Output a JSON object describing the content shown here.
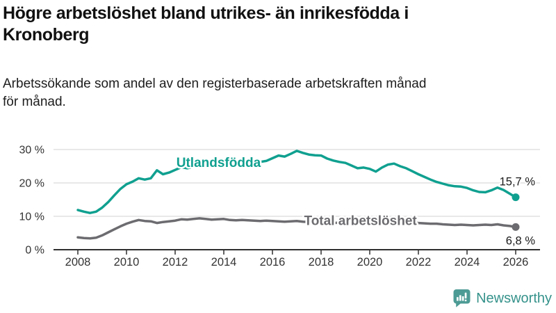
{
  "header": {
    "title": "Högre arbetslöshet bland utrikes- än inrikesfödda i\nKronoberg",
    "subtitle": "Arbetssökande som andel av den registerbaserade arbetskraften månad\nför månad."
  },
  "chart_data": {
    "type": "line",
    "title": "",
    "xlabel": "",
    "ylabel": "",
    "x_start": 2008,
    "x_step": 0.25,
    "x_ticks": [
      2008,
      2010,
      2012,
      2014,
      2016,
      2018,
      2020,
      2022,
      2024,
      2026
    ],
    "y_ticks": [
      0,
      10,
      20,
      30
    ],
    "y_tick_suffix": " %",
    "ylim": [
      0,
      32
    ],
    "xlim": [
      2007,
      2027
    ],
    "grid": true,
    "axis_color": "#2f2f2f",
    "grid_color": "#e0e0e0",
    "tick_label_color": "#333333",
    "end_label_color": "#1a1a1a",
    "series": [
      {
        "name": "Utlandsfödda",
        "slug": "utlandsfodda",
        "color": "#10A090",
        "end_label": "15,7 %",
        "last_value": 15.7,
        "inline_label_pos": {
          "year": 2012.05,
          "pct": 24.8
        },
        "end_label_offset": {
          "dx": 28,
          "dy": -17
        },
        "values": [
          11.9,
          11.4,
          11.0,
          11.4,
          12.6,
          14.3,
          16.3,
          18.2,
          19.6,
          20.4,
          21.4,
          21.0,
          21.4,
          23.8,
          22.6,
          23.1,
          23.9,
          24.7,
          24.4,
          24.8,
          25.0,
          25.3,
          25.1,
          25.0,
          25.1,
          25.4,
          25.2,
          25.6,
          25.7,
          26.0,
          26.3,
          26.6,
          27.4,
          28.2,
          27.9,
          28.7,
          29.6,
          29.0,
          28.5,
          28.3,
          28.2,
          27.3,
          26.7,
          26.3,
          26.0,
          25.2,
          24.4,
          24.6,
          24.2,
          23.4,
          24.6,
          25.5,
          25.8,
          25.0,
          24.4,
          23.5,
          22.6,
          21.8,
          21.0,
          20.3,
          19.8,
          19.3,
          19.0,
          18.9,
          18.5,
          17.8,
          17.3,
          17.2,
          17.8,
          18.6,
          17.9,
          16.8,
          15.7
        ]
      },
      {
        "name": "Total arbetslöshet",
        "slug": "total-arbetsloshet",
        "color": "#6C6C70",
        "end_label": "6,8 %",
        "last_value": 6.8,
        "inline_label_pos": {
          "year": 2017.3,
          "pct": 7.4
        },
        "end_label_offset": {
          "dx": 28,
          "dy": 25
        },
        "values": [
          3.7,
          3.5,
          3.4,
          3.6,
          4.3,
          5.2,
          6.1,
          7.0,
          7.8,
          8.4,
          8.9,
          8.6,
          8.5,
          8.0,
          8.3,
          8.5,
          8.7,
          9.1,
          9.0,
          9.2,
          9.4,
          9.2,
          9.0,
          9.1,
          9.2,
          8.9,
          8.8,
          8.9,
          8.8,
          8.7,
          8.6,
          8.7,
          8.6,
          8.5,
          8.4,
          8.5,
          8.6,
          8.4,
          8.3,
          8.4,
          8.3,
          8.1,
          8.0,
          8.1,
          8.0,
          8.1,
          8.2,
          8.3,
          8.4,
          9.2,
          9.6,
          9.3,
          8.9,
          8.6,
          8.3,
          8.1,
          8.0,
          7.9,
          7.8,
          7.8,
          7.6,
          7.5,
          7.4,
          7.5,
          7.4,
          7.3,
          7.4,
          7.5,
          7.4,
          7.6,
          7.3,
          7.1,
          6.8
        ]
      }
    ]
  },
  "footer": {
    "brand": "Newsworthy",
    "brand_color": "#35928B",
    "logo_color": "#4D9B95",
    "logo_icon": "bar-chart-speech-bubble-icon"
  }
}
